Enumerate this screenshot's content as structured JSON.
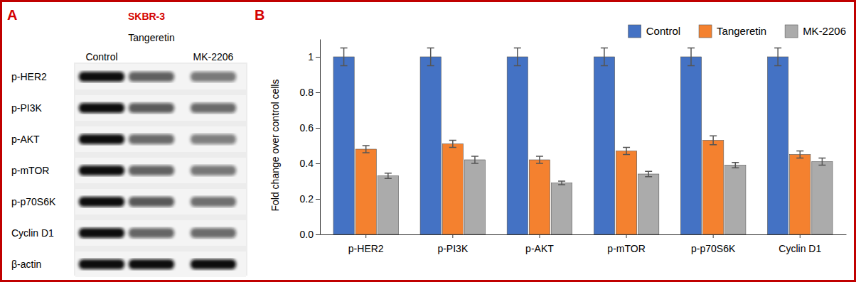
{
  "chart_data": {
    "type": "bar",
    "panel_label": "B",
    "y_label": "Fold change over control cells",
    "categories": [
      "p-HER2",
      "p-PI3K",
      "p-AKT",
      "p-mTOR",
      "p-p70S6K",
      "Cyclin D1"
    ],
    "series": [
      {
        "name": "Control",
        "color": "#4472c4",
        "values": [
          1,
          1,
          1,
          1,
          1,
          1
        ],
        "errors": [
          0.05,
          0.05,
          0.05,
          0.05,
          0.05,
          0.05
        ]
      },
      {
        "name": "Tangeretin",
        "color": "#f4812f",
        "values": [
          0.48,
          0.51,
          0.42,
          0.47,
          0.53,
          0.45
        ],
        "errors": [
          0.02,
          0.02,
          0.02,
          0.02,
          0.025,
          0.02
        ]
      },
      {
        "name": "MK-2206",
        "color": "#ababab",
        "values": [
          0.33,
          0.42,
          0.29,
          0.34,
          0.39,
          0.41
        ],
        "errors": [
          0.015,
          0.02,
          0.01,
          0.015,
          0.015,
          0.02
        ]
      }
    ],
    "ylim": [
      0,
      1.1
    ],
    "yticks": [
      {
        "value": 0,
        "label": "0.0"
      },
      0.2,
      0.4,
      0.6,
      0.8,
      1
    ],
    "grid": false,
    "legend": "top-right"
  },
  "blot": {
    "panel_label": "A",
    "cell_line": "SKBR-3",
    "lanes": [
      "Control",
      "Tangeretin",
      "MK-2206"
    ],
    "rows": [
      "p-HER2",
      "p-PI3K",
      "p-AKT",
      "p-mTOR",
      "p-p70S6K",
      "Cyclin D1",
      "β-actin"
    ]
  }
}
